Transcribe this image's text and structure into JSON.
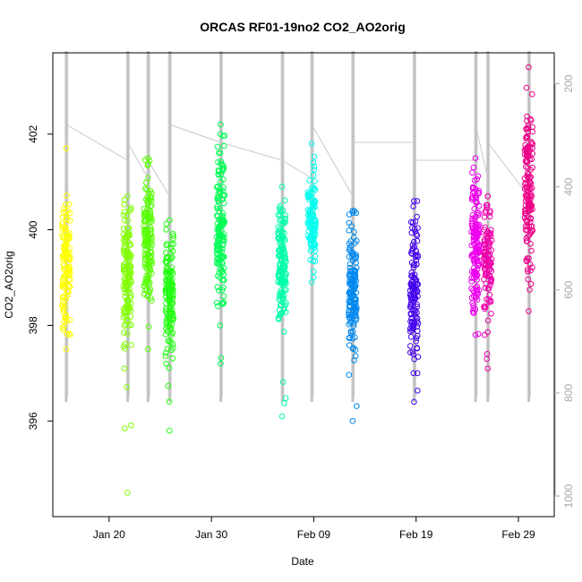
{
  "chart_data": {
    "type": "scatter",
    "title": "ORCAS RF01-19no2 CO2_AO2orig",
    "xlabel": "Date",
    "ylabel": "CO2_AO2orig",
    "x_ticks": [
      "Jan 20",
      "Jan 30",
      "Feb 09",
      "Feb 19",
      "Feb 29"
    ],
    "y_ticks": [
      "396",
      "398",
      "400",
      "402"
    ],
    "y2_ticks": [
      "200",
      "400",
      "600",
      "800",
      "1000"
    ],
    "xlim_days": [
      14.5,
      63.5
    ],
    "ylim": [
      394.0,
      403.7
    ],
    "y2lim": [
      1040,
      140
    ],
    "flights": [
      {
        "day": 15.8,
        "color": "#FFFF00",
        "min": 397.5,
        "max": 401.7,
        "dense_min": 397.8,
        "dense_max": 401.0,
        "n": 130
      },
      {
        "day": 21.8,
        "color": "#80FF00",
        "min": 394.5,
        "max": 400.7,
        "dense_min": 397.5,
        "dense_max": 400.7,
        "n": 140
      },
      {
        "day": 23.8,
        "color": "#55FF00",
        "min": 397.5,
        "max": 401.5,
        "dense_min": 398.2,
        "dense_max": 401.5,
        "n": 140
      },
      {
        "day": 25.9,
        "color": "#22FF11",
        "min": 395.8,
        "max": 400.2,
        "dense_min": 397.0,
        "dense_max": 400.2,
        "n": 150
      },
      {
        "day": 30.9,
        "color": "#00FF55",
        "min": 397.2,
        "max": 402.2,
        "dense_min": 398.2,
        "dense_max": 402.0,
        "n": 150
      },
      {
        "day": 36.9,
        "color": "#00FFAA",
        "min": 396.1,
        "max": 400.9,
        "dense_min": 397.8,
        "dense_max": 400.9,
        "n": 150
      },
      {
        "day": 39.8,
        "color": "#00FFEE",
        "min": 398.9,
        "max": 401.8,
        "dense_min": 399.2,
        "dense_max": 401.4,
        "n": 110
      },
      {
        "day": 43.8,
        "color": "#0088EE",
        "min": 396.0,
        "max": 400.4,
        "dense_min": 397.2,
        "dense_max": 400.4,
        "n": 150
      },
      {
        "day": 49.8,
        "color": "#4400EE",
        "min": 396.4,
        "max": 400.6,
        "dense_min": 397.0,
        "dense_max": 400.6,
        "n": 130
      },
      {
        "day": 55.8,
        "color": "#EE00EE",
        "min": 397.8,
        "max": 401.5,
        "dense_min": 398.0,
        "dense_max": 401.4,
        "n": 150
      },
      {
        "day": 57.0,
        "color": "#EE00AA",
        "min": 397.1,
        "max": 400.7,
        "dense_min": 397.8,
        "dense_max": 400.7,
        "n": 110
      },
      {
        "day": 61.0,
        "color": "#EE0088",
        "min": 398.3,
        "max": 403.4,
        "dense_min": 398.6,
        "dense_max": 403.0,
        "n": 150
      }
    ]
  }
}
